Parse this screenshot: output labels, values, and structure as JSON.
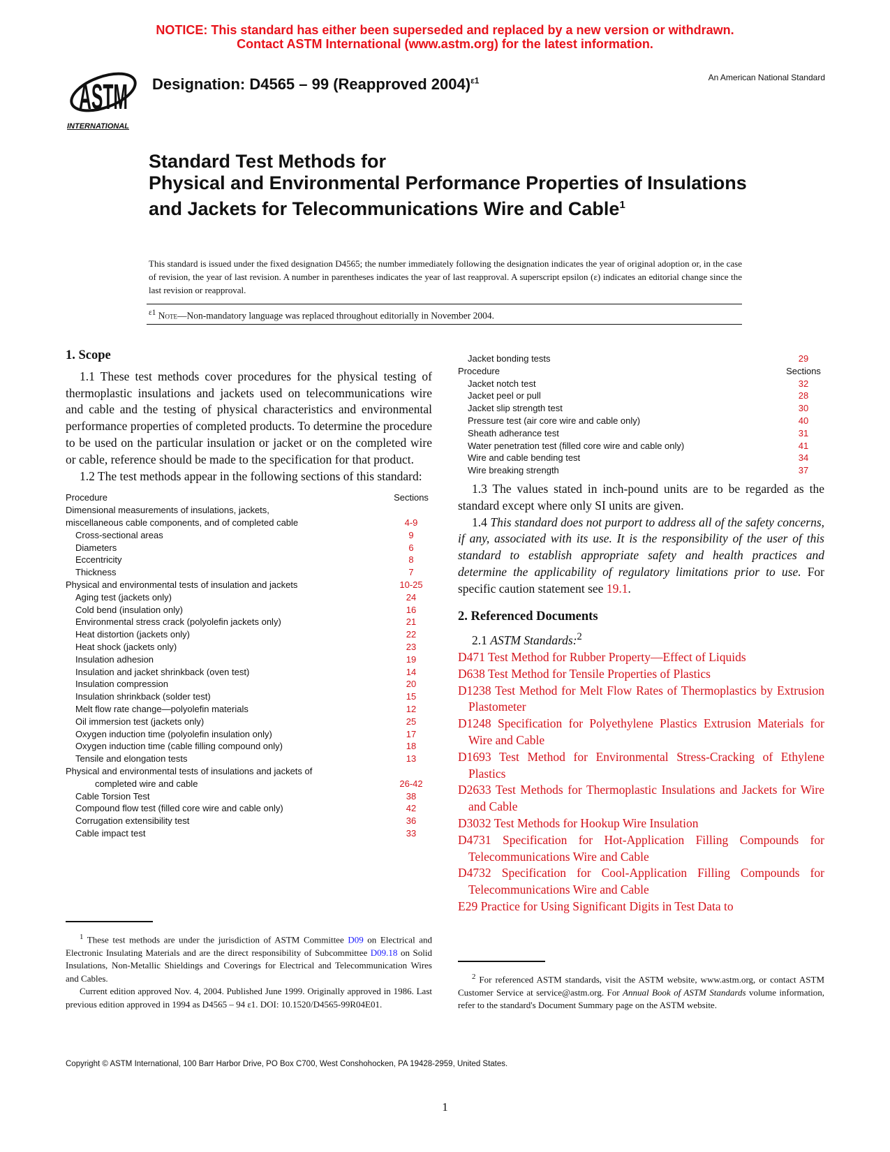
{
  "notice": {
    "line1": "NOTICE: This standard has either been superseded and replaced by a new version or withdrawn.",
    "line2": "Contact ASTM International (www.astm.org) for the latest information."
  },
  "logo": {
    "text": "ASTM",
    "sub": "INTERNATIONAL"
  },
  "designation": {
    "text": "Designation: D4565 – 99 (Reapproved 2004)",
    "sup": "ε1"
  },
  "american_national": "An American National Standard",
  "title": {
    "line1": "Standard Test Methods for",
    "line2": "Physical and Environmental Performance Properties of Insulations and Jackets for Telecommunications Wire and Cable",
    "sup": "1"
  },
  "issued": "This standard is issued under the fixed designation D4565; the number immediately following the designation indicates the year of original adoption or, in the case of revision, the year of last revision. A number in parentheses indicates the year of last reapproval. A superscript epsilon (ε) indicates an editorial change since the last revision or reapproval.",
  "editorial_note": {
    "mark": "ε1",
    "label": "Note",
    "text": "—Non-mandatory language was replaced throughout editorially in November 2004."
  },
  "scope": {
    "heading": "1. Scope",
    "p1_1": "1.1 These test methods cover procedures for the physical testing of thermoplastic insulations and jackets used on telecommunications wire and cable and the testing of physical characteristics and environmental performance properties of completed products. To determine the procedure to be used on the particular insulation or jacket or on the completed wire or cable, reference should be made to the specification for that product.",
    "p1_2": "1.2 The test methods appear in the following sections of this standard:",
    "table_head": {
      "procedure": "Procedure",
      "sections": "Sections"
    },
    "table": [
      {
        "label": "Dimensional measurements of insulations, jackets,",
        "sec": "",
        "lvl": 0
      },
      {
        "label": "miscellaneous cable components, and of completed cable",
        "sec": "4-9",
        "lvl": 0
      },
      {
        "label": "Cross-sectional areas",
        "sec": "9",
        "lvl": 1
      },
      {
        "label": "Diameters",
        "sec": "6",
        "lvl": 1
      },
      {
        "label": "Eccentricity",
        "sec": "8",
        "lvl": 1
      },
      {
        "label": "Thickness",
        "sec": "7",
        "lvl": 1
      },
      {
        "label": "Physical and environmental tests of insulation and jackets",
        "sec": "10-25",
        "lvl": 0
      },
      {
        "label": "Aging test (jackets only)",
        "sec": "24",
        "lvl": 1
      },
      {
        "label": "Cold bend (insulation only)",
        "sec": "16",
        "lvl": 1
      },
      {
        "label": "Environmental stress crack (polyolefin jackets only)",
        "sec": "21",
        "lvl": 1
      },
      {
        "label": "Heat distortion (jackets only)",
        "sec": "22",
        "lvl": 1
      },
      {
        "label": "Heat shock (jackets only)",
        "sec": "23",
        "lvl": 1
      },
      {
        "label": "Insulation adhesion",
        "sec": "19",
        "lvl": 1
      },
      {
        "label": "Insulation and jacket shrinkback (oven test)",
        "sec": "14",
        "lvl": 1
      },
      {
        "label": "Insulation compression",
        "sec": "20",
        "lvl": 1
      },
      {
        "label": "Insulation shrinkback (solder test)",
        "sec": "15",
        "lvl": 1
      },
      {
        "label": "Melt flow rate change—polyolefin materials",
        "sec": "12",
        "lvl": 1
      },
      {
        "label": "Oil immersion test (jackets only)",
        "sec": "25",
        "lvl": 1
      },
      {
        "label": "Oxygen induction time (polyolefin insulation only)",
        "sec": "17",
        "lvl": 1
      },
      {
        "label": "Oxygen induction time (cable filling compound only)",
        "sec": "18",
        "lvl": 1
      },
      {
        "label": "Tensile and elongation tests",
        "sec": "13",
        "lvl": 1
      },
      {
        "label": "Physical and environmental tests of insulations and jackets of",
        "sec": "",
        "lvl": 0
      },
      {
        "label": "completed wire and cable",
        "sec": "26-42",
        "lvl": 2
      },
      {
        "label": "Cable Torsion Test",
        "sec": "38",
        "lvl": 1
      },
      {
        "label": "Compound flow test (filled core wire and cable only)",
        "sec": "42",
        "lvl": 1
      },
      {
        "label": "Corrugation extensibility test",
        "sec": "36",
        "lvl": 1
      },
      {
        "label": "Cable impact test",
        "sec": "33",
        "lvl": 1
      }
    ],
    "table_cont": [
      {
        "label": "Jacket bonding tests",
        "sec": "29",
        "lvl": 1
      },
      {
        "label": "Procedure",
        "sec": "Sections",
        "lvl": 0,
        "head": true
      },
      {
        "label": "Jacket notch test",
        "sec": "32",
        "lvl": 1
      },
      {
        "label": "Jacket peel or pull",
        "sec": "28",
        "lvl": 1
      },
      {
        "label": "Jacket slip strength test",
        "sec": "30",
        "lvl": 1
      },
      {
        "label": "Pressure test (air core wire and cable only)",
        "sec": "40",
        "lvl": 1
      },
      {
        "label": "Sheath adherance test",
        "sec": "31",
        "lvl": 1
      },
      {
        "label": "Water penetration test (filled core wire and cable only)",
        "sec": "41",
        "lvl": 1
      },
      {
        "label": "Wire and cable bending test",
        "sec": "34",
        "lvl": 1
      },
      {
        "label": "Wire breaking strength",
        "sec": "37",
        "lvl": 1
      }
    ],
    "p1_3": "1.3 The values stated in inch-pound units are to be regarded as the standard except where only SI units are given.",
    "p1_4_num": "1.4",
    "p1_4_italic": "This standard does not purport to address all of the safety concerns, if any, associated with its use. It is the responsibility of the user of this standard to establish appropriate safety and health practices and determine the applicability of regulatory limitations prior to use.",
    "p1_4_tail": "For specific caution statement see",
    "p1_4_link": "19.1",
    "p1_4_end": "."
  },
  "refs": {
    "heading": "2. Referenced Documents",
    "sub_num": "2.1",
    "sub_label": "ASTM Standards:",
    "sub_sup": "2",
    "items": [
      {
        "code": "D471",
        "title": "Test Method for Rubber Property—Effect of Liquids"
      },
      {
        "code": "D638",
        "title": "Test Method for Tensile Properties of Plastics"
      },
      {
        "code": "D1238",
        "title": "Test Method for Melt Flow Rates of Thermoplastics by Extrusion Plastometer"
      },
      {
        "code": "D1248",
        "title": "Specification for Polyethylene Plastics Extrusion Materials for Wire and Cable"
      },
      {
        "code": "D1693",
        "title": "Test Method for Environmental Stress-Cracking of Ethylene Plastics"
      },
      {
        "code": "D2633",
        "title": "Test Methods for Thermoplastic Insulations and Jackets for Wire and Cable"
      },
      {
        "code": "D3032",
        "title": "Test Methods for Hookup Wire Insulation"
      },
      {
        "code": "D4731",
        "title": "Specification for Hot-Application Filling Compounds for Telecommunications Wire and Cable"
      },
      {
        "code": "D4732",
        "title": "Specification for Cool-Application Filling Compounds for Telecommunications Wire and Cable"
      },
      {
        "code": "E29",
        "title": "Practice for Using Significant Digits in Test Data to"
      }
    ]
  },
  "footnote1": {
    "sup": "1",
    "a": "These test methods are under the jurisdiction of ASTM Committee",
    "link1": "D09",
    "b": "on Electrical and Electronic Insulating Materials and are the direct responsibility of Subcommittee",
    "link2": "D09.18",
    "c": "on Solid Insulations, Non-Metallic Shieldings and Coverings for Electrical and Telecommunication Wires and Cables.",
    "p2": "Current edition approved Nov. 4, 2004. Published June 1999. Originally approved in 1986. Last previous edition approved in 1994 as D4565 – 94 ε1. DOI: 10.1520/D4565-99R04E01."
  },
  "footnote2": {
    "sup": "2",
    "a": "For referenced ASTM standards, visit the ASTM website, www.astm.org, or contact ASTM Customer Service at service@astm.org. For",
    "i": "Annual Book of ASTM Standards",
    "b": "volume information, refer to the standard's Document Summary page on the ASTM website."
  },
  "copyright": "Copyright © ASTM International, 100 Barr Harbor Drive, PO Box C700, West Conshohocken, PA 19428-2959, United States.",
  "page_number": "1"
}
